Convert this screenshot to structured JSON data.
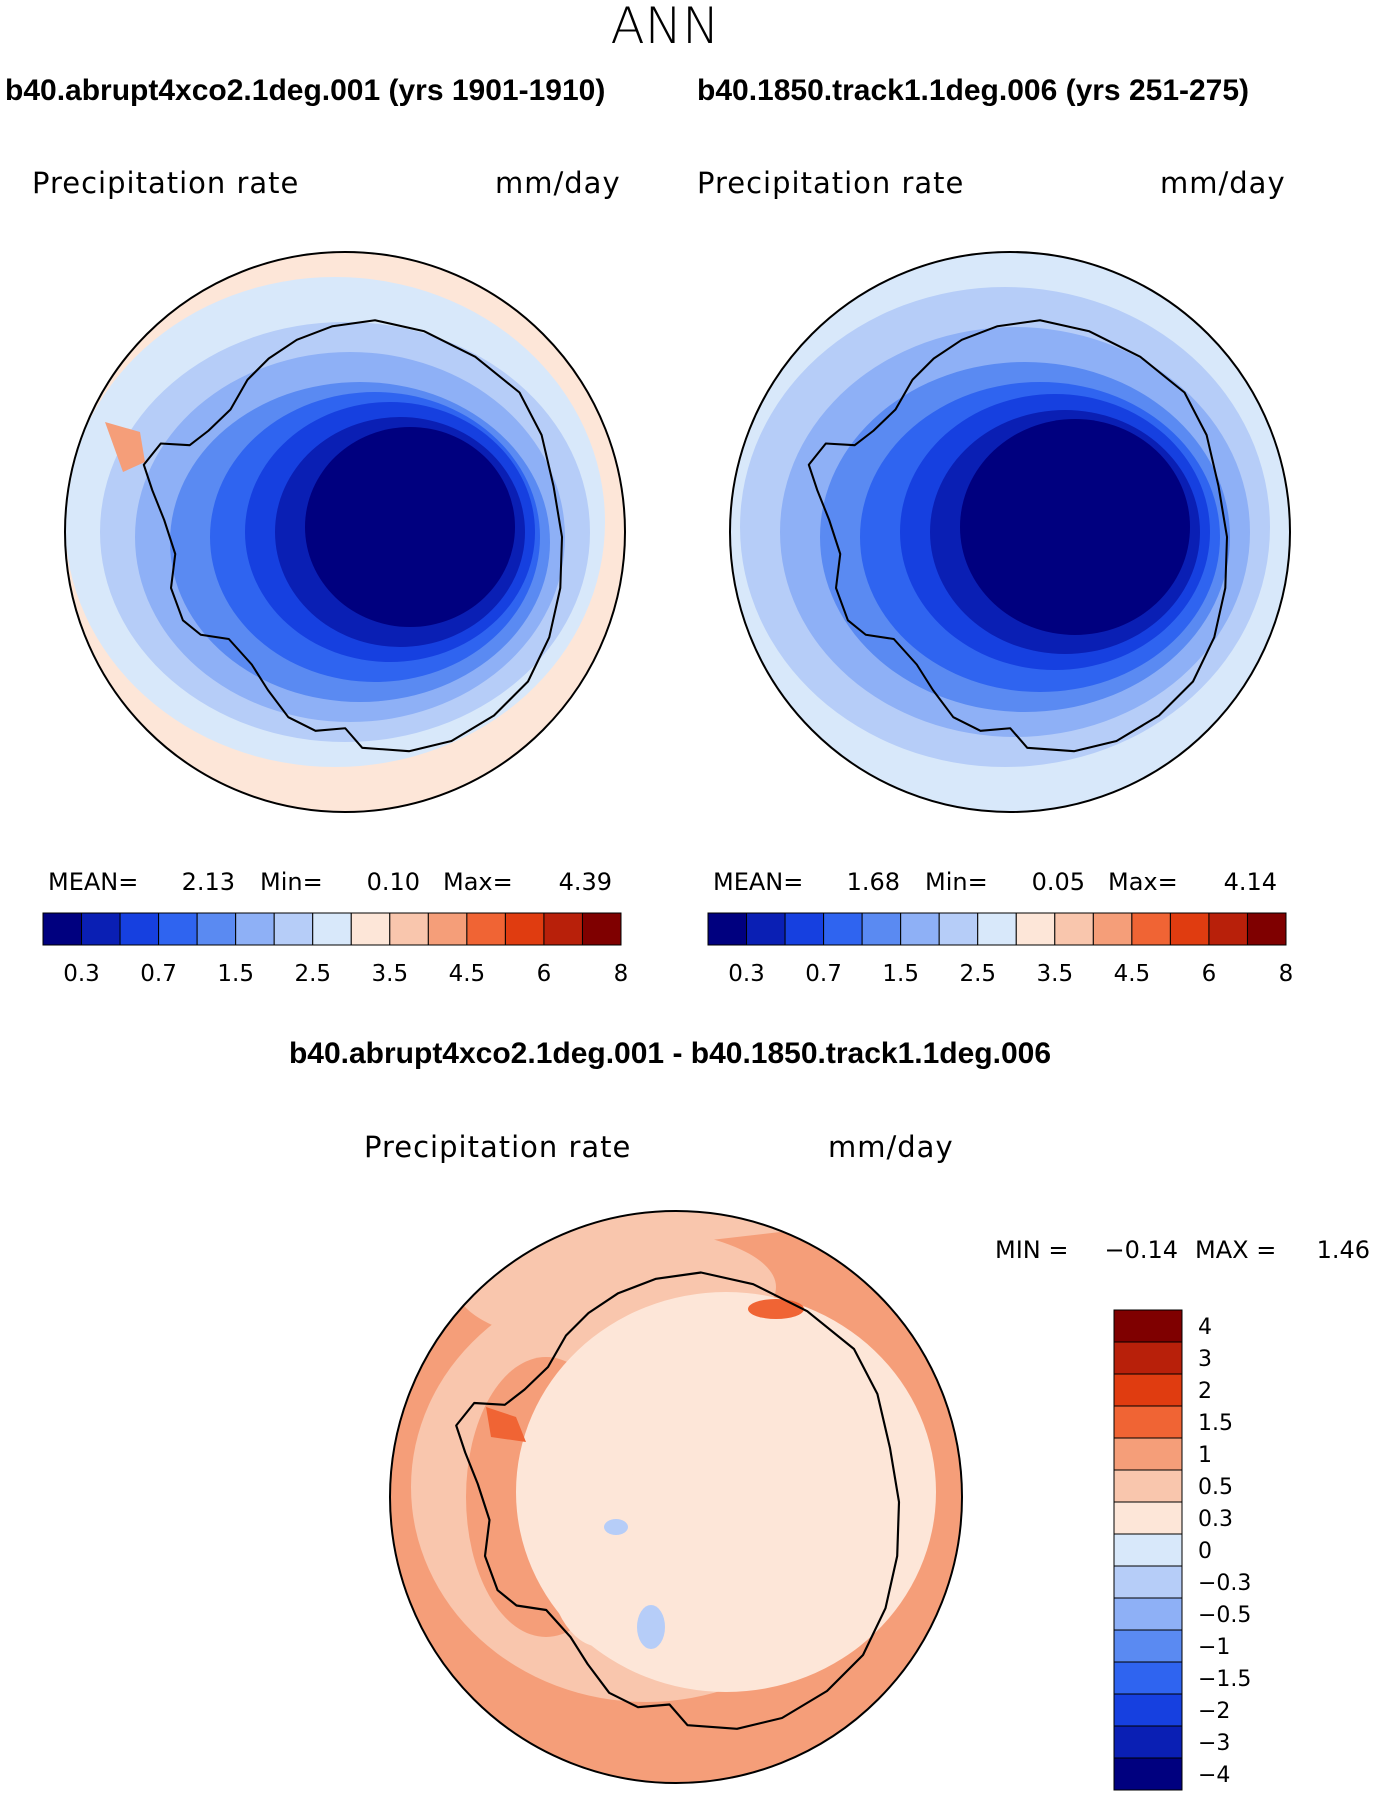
{
  "season": "ANN",
  "panels": [
    {
      "case_title": "b40.abrupt4xco2.1deg.001 (yrs 1901-1910)",
      "variable": "Precipitation rate",
      "units": "mm/day",
      "mean_label": "MEAN=",
      "mean": "2.13",
      "min_label": "Min=",
      "min": "0.10",
      "max_label": "Max=",
      "max": "4.39"
    },
    {
      "case_title": "b40.1850.track1.1deg.006 (yrs 251-275)",
      "variable": "Precipitation rate",
      "units": "mm/day",
      "mean_label": "MEAN=",
      "mean": "1.68",
      "min_label": "Min=",
      "min": "0.05",
      "max_label": "Max=",
      "max": "4.14"
    }
  ],
  "diff": {
    "title": "b40.abrupt4xco2.1deg.001 - b40.1850.track1.1deg.006",
    "variable": "Precipitation rate",
    "units": "mm/day",
    "min_label": "MIN =",
    "min": "−0.14",
    "max_label": "MAX =",
    "max": "1.46"
  },
  "chart_data": [
    {
      "type": "heatmap",
      "projection": "south polar stereographic",
      "title": "b40.abrupt4xco2.1deg.001 (yrs 1901-1910)",
      "variable": "Precipitation rate",
      "units": "mm/day",
      "mean": 2.13,
      "min": 0.1,
      "max": 4.39,
      "contour_levels": [
        0.3,
        0.7,
        1.5,
        2.5,
        3.5,
        4.5,
        6,
        8
      ],
      "colorbar_tick_labels": [
        "0.3",
        "0.7",
        "1.5",
        "2.5",
        "3.5",
        "4.5",
        "6",
        "8"
      ],
      "colors": [
        "#00007f",
        "#0a1fb4",
        "#1640e0",
        "#2f64f0",
        "#5a8af2",
        "#8eb0f6",
        "#b6cdf8",
        "#d8e8fa",
        "#fde6d8",
        "#f9c6ad",
        "#f59e79",
        "#f06434",
        "#e03c10",
        "#b8200a",
        "#7f0000"
      ]
    },
    {
      "type": "heatmap",
      "projection": "south polar stereographic",
      "title": "b40.1850.track1.1deg.006 (yrs 251-275)",
      "variable": "Precipitation rate",
      "units": "mm/day",
      "mean": 1.68,
      "min": 0.05,
      "max": 4.14,
      "contour_levels": [
        0.3,
        0.7,
        1.5,
        2.5,
        3.5,
        4.5,
        6,
        8
      ],
      "colorbar_tick_labels": [
        "0.3",
        "0.7",
        "1.5",
        "2.5",
        "3.5",
        "4.5",
        "6",
        "8"
      ],
      "colors": [
        "#00007f",
        "#0a1fb4",
        "#1640e0",
        "#2f64f0",
        "#5a8af2",
        "#8eb0f6",
        "#b6cdf8",
        "#d8e8fa",
        "#fde6d8",
        "#f9c6ad",
        "#f59e79",
        "#f06434",
        "#e03c10",
        "#b8200a",
        "#7f0000"
      ]
    },
    {
      "type": "heatmap",
      "projection": "south polar stereographic",
      "title": "b40.abrupt4xco2.1deg.001 - b40.1850.track1.1deg.006",
      "variable": "Precipitation rate",
      "units": "mm/day",
      "min": -0.14,
      "max": 1.46,
      "contour_levels": [
        4,
        3,
        2,
        1.5,
        1,
        0.5,
        0.3,
        0,
        -0.3,
        -0.5,
        -1,
        -1.5,
        -2,
        -3,
        -4
      ],
      "colorbar_tick_labels": [
        "4",
        "3",
        "2",
        "1.5",
        "1",
        "0.5",
        "0.3",
        "0",
        "−0.3",
        "−0.5",
        "−1",
        "−1.5",
        "−2",
        "−3",
        "−4"
      ],
      "colors": [
        "#7f0000",
        "#b8200a",
        "#e03c10",
        "#f06434",
        "#f59e79",
        "#f9c6ad",
        "#fde6d8",
        "#d8e8fa",
        "#b6cdf8",
        "#8eb0f6",
        "#5a8af2",
        "#2f64f0",
        "#1640e0",
        "#0a1fb4",
        "#00007f"
      ]
    }
  ]
}
